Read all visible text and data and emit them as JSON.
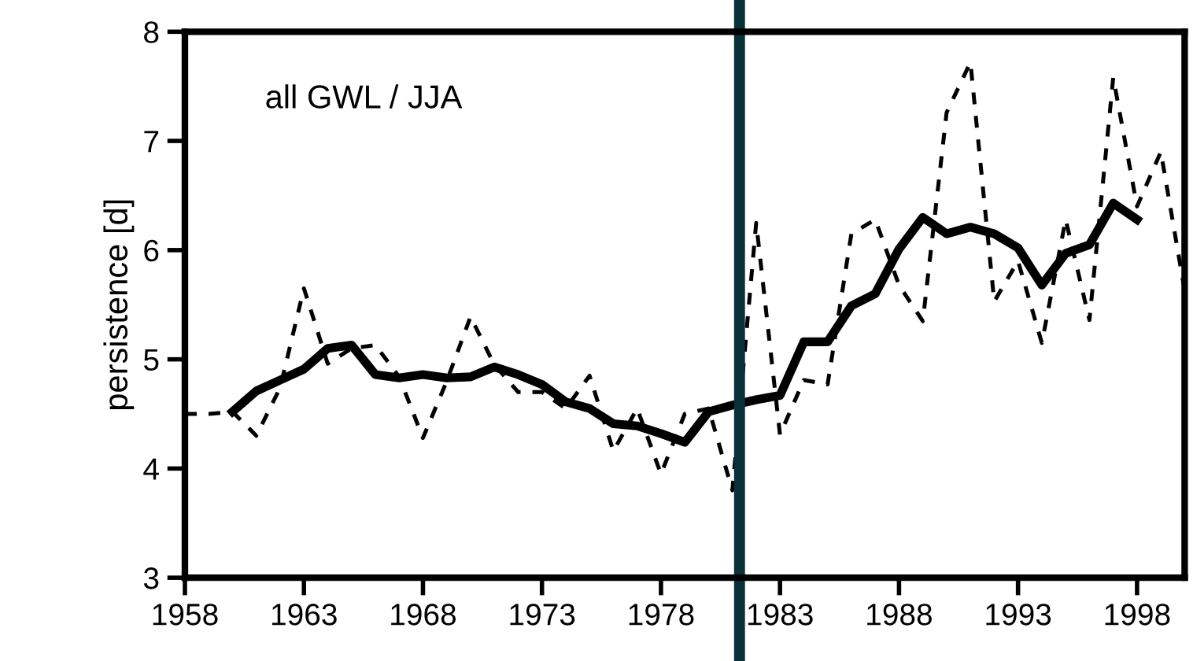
{
  "chart_data": {
    "type": "line",
    "ylabel": "persistence [d]",
    "annotations": [
      "all GWL / JJA"
    ],
    "xlim": [
      1958,
      2000
    ],
    "xticks": [
      1958,
      1963,
      1968,
      1973,
      1978,
      1983,
      1988,
      1993,
      1998
    ],
    "ylim": [
      3,
      8
    ],
    "yticks": [
      3,
      4,
      5,
      6,
      7,
      8
    ],
    "grid": false,
    "marker": "none",
    "ref_lines": [
      {
        "axis": "x",
        "value": 1981.3,
        "color": "#0a3038",
        "line_style": "solid"
      }
    ],
    "series": [
      {
        "color": "#000000",
        "line_style": "dashed",
        "x": [
          1958,
          1959,
          1960,
          1961,
          1962,
          1963,
          1964,
          1965,
          1966,
          1967,
          1968,
          1969,
          1970,
          1971,
          1972,
          1973,
          1974,
          1975,
          1976,
          1977,
          1978,
          1979,
          1980,
          1981,
          1982,
          1983,
          1984,
          1985,
          1986,
          1987,
          1988,
          1989,
          1990,
          1991,
          1992,
          1993,
          1994,
          1995,
          1996,
          1997,
          1998,
          1999,
          2000
        ],
        "values": [
          4.5,
          4.5,
          4.52,
          4.3,
          4.74,
          5.65,
          4.96,
          5.1,
          5.13,
          4.84,
          4.28,
          4.8,
          5.39,
          4.95,
          4.7,
          4.7,
          4.55,
          4.85,
          4.16,
          4.55,
          3.95,
          4.5,
          4.55,
          3.8,
          6.25,
          4.31,
          4.81,
          4.77,
          6.15,
          6.28,
          5.68,
          5.35,
          7.26,
          7.72,
          5.53,
          5.9,
          5.15,
          6.28,
          5.36,
          7.58,
          6.4,
          6.9,
          5.63
        ]
      },
      {
        "color": "#000000",
        "line_style": "solid",
        "x": [
          1960,
          1961,
          1962,
          1963,
          1964,
          1965,
          1966,
          1967,
          1968,
          1969,
          1970,
          1971,
          1972,
          1973,
          1974,
          1975,
          1976,
          1977,
          1978,
          1979,
          1980,
          1981,
          1982,
          1983,
          1984,
          1985,
          1986,
          1987,
          1988,
          1989,
          1990,
          1991,
          1992,
          1993,
          1994,
          1995,
          1996,
          1997,
          1998
        ],
        "values": [
          4.52,
          4.71,
          4.81,
          4.91,
          5.1,
          5.13,
          4.86,
          4.83,
          4.86,
          4.83,
          4.84,
          4.93,
          4.86,
          4.77,
          4.61,
          4.55,
          4.41,
          4.39,
          4.32,
          4.24,
          4.52,
          4.58,
          4.63,
          4.67,
          5.16,
          5.16,
          5.49,
          5.6,
          6.01,
          6.3,
          6.15,
          6.21,
          6.15,
          6.02,
          5.68,
          5.97,
          6.05,
          6.43,
          6.28
        ]
      }
    ]
  }
}
